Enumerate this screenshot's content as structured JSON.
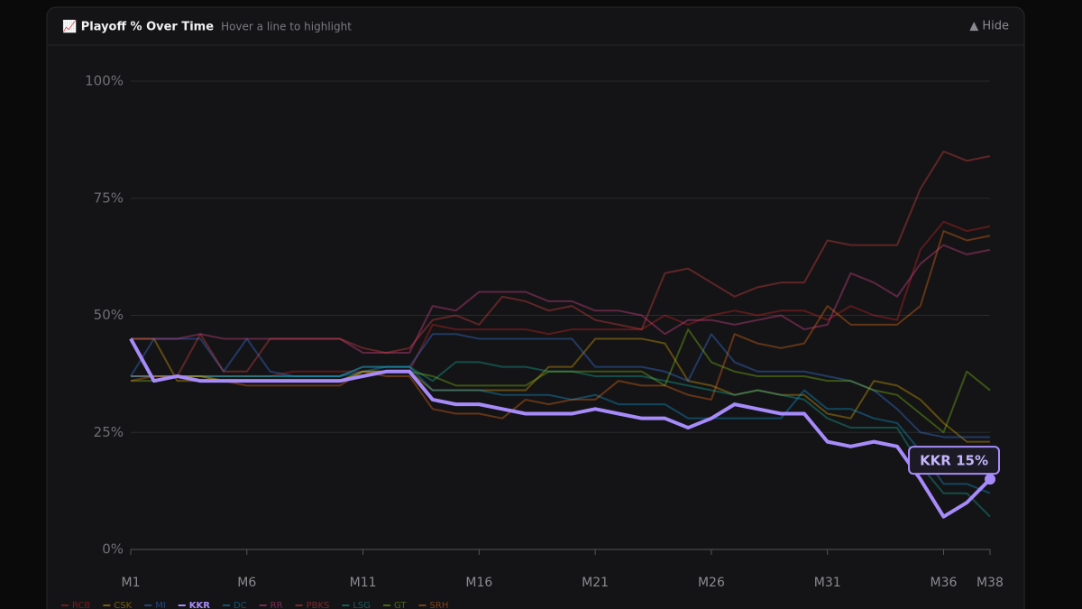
{
  "chart_data": {
    "type": "line",
    "title": "📈 Playoff % Over Time",
    "subtitle": "Hover a line to highlight",
    "hide_button": "▲ Hide",
    "annotation": "KKR 15%",
    "highlighted": "KKR",
    "x": [
      1,
      2,
      3,
      4,
      5,
      6,
      7,
      8,
      9,
      10,
      11,
      12,
      13,
      14,
      15,
      16,
      17,
      18,
      19,
      20,
      21,
      22,
      23,
      24,
      25,
      26,
      27,
      28,
      29,
      30,
      31,
      32,
      33,
      34,
      35,
      36,
      37,
      38
    ],
    "xlim": [
      1,
      38
    ],
    "xticks": [
      {
        "value": 1,
        "label": "M1"
      },
      {
        "value": 6,
        "label": "M6"
      },
      {
        "value": 11,
        "label": "M11"
      },
      {
        "value": 16,
        "label": "M16"
      },
      {
        "value": 21,
        "label": "M21"
      },
      {
        "value": 26,
        "label": "M26"
      },
      {
        "value": 31,
        "label": "M31"
      },
      {
        "value": 36,
        "label": "M36"
      },
      {
        "value": 38,
        "label": "M38"
      }
    ],
    "ylim": [
      0,
      100
    ],
    "yticks": [
      {
        "value": 0,
        "label": "0%"
      },
      {
        "value": 25,
        "label": "25%"
      },
      {
        "value": 50,
        "label": "50%"
      },
      {
        "value": 75,
        "label": "75%"
      },
      {
        "value": 100,
        "label": "100%"
      }
    ],
    "grid": true,
    "legend": "bottom-left",
    "series": [
      {
        "name": "RCB",
        "color": "#dc2626",
        "values": [
          37,
          37,
          37,
          37,
          37,
          37,
          37,
          38,
          38,
          38,
          38,
          38,
          38,
          48,
          47,
          47,
          47,
          47,
          46,
          47,
          47,
          47,
          47,
          50,
          48,
          50,
          51,
          50,
          51,
          51,
          49,
          52,
          50,
          49,
          64,
          70,
          68,
          69
        ]
      },
      {
        "name": "CSK",
        "color": "#eab308",
        "values": [
          45,
          45,
          36,
          36,
          36,
          36,
          36,
          36,
          36,
          36,
          38,
          38,
          38,
          34,
          34,
          34,
          34,
          34,
          39,
          39,
          45,
          45,
          45,
          44,
          36,
          35,
          33,
          34,
          33,
          33,
          29,
          28,
          36,
          35,
          32,
          27,
          23,
          23
        ]
      },
      {
        "name": "MI",
        "color": "#3b82f6",
        "values": [
          37,
          45,
          45,
          45,
          38,
          45,
          38,
          37,
          37,
          37,
          39,
          39,
          39,
          46,
          46,
          45,
          45,
          45,
          45,
          45,
          39,
          39,
          39,
          38,
          36,
          46,
          40,
          38,
          38,
          38,
          37,
          36,
          34,
          30,
          25,
          24,
          24,
          24
        ]
      },
      {
        "name": "KKR",
        "color": "#a78bfa",
        "values": [
          45,
          36,
          37,
          36,
          36,
          36,
          36,
          36,
          36,
          36,
          37,
          38,
          38,
          32,
          31,
          31,
          30,
          29,
          29,
          29,
          30,
          29,
          28,
          28,
          26,
          28,
          31,
          30,
          29,
          29,
          23,
          22,
          23,
          22,
          15,
          7,
          10,
          15
        ]
      },
      {
        "name": "DC",
        "color": "#0ea5e9",
        "values": [
          37,
          37,
          37,
          37,
          37,
          37,
          37,
          37,
          37,
          37,
          38,
          39,
          39,
          34,
          34,
          34,
          33,
          33,
          33,
          32,
          33,
          31,
          31,
          31,
          28,
          28,
          28,
          28,
          28,
          34,
          30,
          30,
          28,
          27,
          21,
          14,
          14,
          12
        ]
      },
      {
        "name": "RR",
        "color": "#ec4899",
        "values": [
          45,
          45,
          45,
          46,
          45,
          45,
          45,
          45,
          45,
          45,
          42,
          42,
          42,
          52,
          51,
          55,
          55,
          55,
          53,
          53,
          51,
          51,
          50,
          46,
          49,
          49,
          48,
          49,
          50,
          47,
          48,
          59,
          57,
          54,
          61,
          65,
          63,
          64
        ]
      },
      {
        "name": "PBKS",
        "color": "#ef4444",
        "values": [
          37,
          37,
          37,
          46,
          38,
          38,
          45,
          45,
          45,
          45,
          43,
          42,
          43,
          49,
          50,
          48,
          54,
          53,
          51,
          52,
          49,
          48,
          47,
          59,
          60,
          57,
          54,
          56,
          57,
          57,
          66,
          65,
          65,
          65,
          77,
          85,
          83,
          84
        ]
      },
      {
        "name": "LSG",
        "color": "#14b8a6",
        "values": [
          37,
          37,
          37,
          37,
          37,
          37,
          37,
          37,
          37,
          37,
          39,
          39,
          39,
          36,
          40,
          40,
          39,
          39,
          38,
          38,
          37,
          37,
          37,
          36,
          35,
          34,
          33,
          34,
          33,
          32,
          28,
          26,
          26,
          26,
          18,
          12,
          12,
          7
        ]
      },
      {
        "name": "GT",
        "color": "#84cc16",
        "values": [
          36,
          36,
          37,
          37,
          36,
          36,
          36,
          36,
          36,
          36,
          38,
          38,
          38,
          37,
          35,
          35,
          35,
          35,
          38,
          38,
          38,
          38,
          38,
          35,
          47,
          40,
          38,
          37,
          37,
          37,
          36,
          36,
          34,
          33,
          29,
          25,
          38,
          34
        ]
      },
      {
        "name": "SRH",
        "color": "#f97316",
        "values": [
          36,
          37,
          37,
          37,
          36,
          35,
          35,
          35,
          35,
          35,
          38,
          37,
          37,
          30,
          29,
          29,
          28,
          32,
          31,
          32,
          32,
          36,
          35,
          35,
          33,
          32,
          46,
          44,
          43,
          44,
          52,
          48,
          48,
          48,
          52,
          68,
          66,
          67
        ]
      }
    ]
  }
}
